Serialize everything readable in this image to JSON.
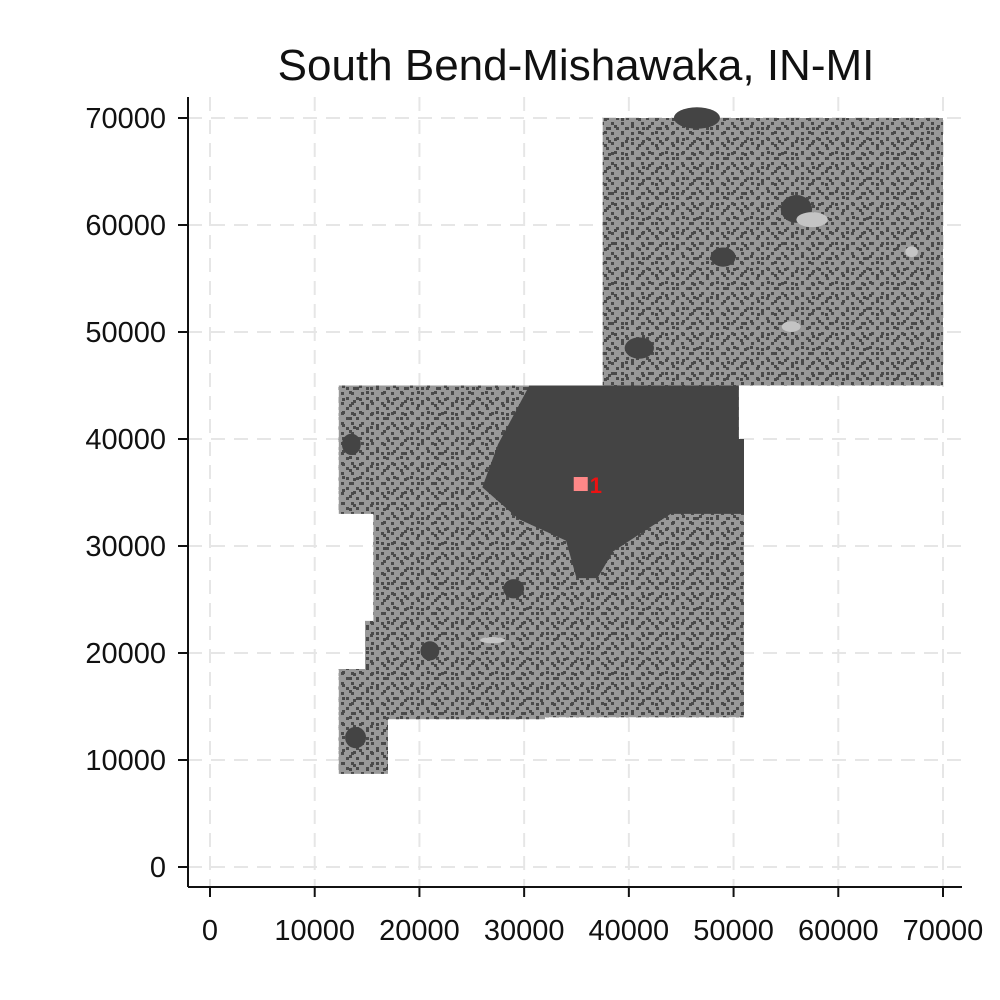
{
  "map": {
    "title": "South Bend-Mishawaka, IN-MI",
    "x_axis": {
      "min": 0,
      "max": 70000,
      "ticks": [
        0,
        10000,
        20000,
        30000,
        40000,
        50000,
        60000,
        70000
      ],
      "labels": [
        "0",
        "10000",
        "20000",
        "30000",
        "40000",
        "50000",
        "60000",
        "70000"
      ]
    },
    "y_axis": {
      "min": 0,
      "max": 70000,
      "ticks": [
        0,
        10000,
        20000,
        30000,
        40000,
        50000,
        60000,
        70000
      ],
      "labels": [
        "0",
        "10000",
        "20000",
        "30000",
        "40000",
        "50000",
        "60000",
        "70000"
      ]
    },
    "grid": true,
    "colors": {
      "background_land": "#999999",
      "developed": "#444444",
      "light_patch": "#c4c4c4",
      "marker": "#ee1111",
      "marker_fill": "#ff8888",
      "grid": "#e6e6e6"
    },
    "region_outline": [
      [
        37500,
        70000
      ],
      [
        70000,
        70000
      ],
      [
        70000,
        45000
      ],
      [
        50500,
        45000
      ],
      [
        50500,
        40000
      ],
      [
        51000,
        40000
      ],
      [
        51000,
        14000
      ],
      [
        32000,
        14000
      ],
      [
        32000,
        13800
      ],
      [
        17000,
        13800
      ],
      [
        17000,
        8700
      ],
      [
        12300,
        8700
      ],
      [
        12300,
        18500
      ],
      [
        14800,
        18500
      ],
      [
        14800,
        23000
      ],
      [
        15600,
        23000
      ],
      [
        15600,
        33000
      ],
      [
        12300,
        33000
      ],
      [
        12300,
        45000
      ],
      [
        37500,
        45000
      ]
    ],
    "urban_core": [
      [
        30500,
        45000
      ],
      [
        50500,
        45000
      ],
      [
        50500,
        40000
      ],
      [
        51000,
        40000
      ],
      [
        51000,
        33000
      ],
      [
        44000,
        33000
      ],
      [
        38500,
        29500
      ],
      [
        37000,
        27000
      ],
      [
        35000,
        27000
      ],
      [
        34000,
        30500
      ],
      [
        29500,
        32500
      ],
      [
        26000,
        35500
      ],
      [
        27500,
        39500
      ]
    ],
    "urban_patches": [
      {
        "x": 46500,
        "y": 70000,
        "rx": 2200,
        "ry": 1000
      },
      {
        "x": 56000,
        "y": 61500,
        "rx": 1500,
        "ry": 1300
      },
      {
        "x": 13900,
        "y": 12100,
        "rx": 1000,
        "ry": 1000
      },
      {
        "x": 21000,
        "y": 20200,
        "rx": 900,
        "ry": 900
      },
      {
        "x": 41000,
        "y": 48500,
        "rx": 1400,
        "ry": 1000
      },
      {
        "x": 49000,
        "y": 57000,
        "rx": 1200,
        "ry": 900
      },
      {
        "x": 13500,
        "y": 39500,
        "rx": 900,
        "ry": 1000
      },
      {
        "x": 29000,
        "y": 26000,
        "rx": 1000,
        "ry": 900
      }
    ],
    "light_patches": [
      {
        "x": 57500,
        "y": 60500,
        "rx": 1500,
        "ry": 700
      },
      {
        "x": 55500,
        "y": 50500,
        "rx": 900,
        "ry": 500
      },
      {
        "x": 27000,
        "y": 21200,
        "rx": 1200,
        "ry": 300
      },
      {
        "x": 67000,
        "y": 57500,
        "rx": 600,
        "ry": 500
      }
    ],
    "marker": {
      "label": "1",
      "x": 35500,
      "y": 35700
    }
  }
}
